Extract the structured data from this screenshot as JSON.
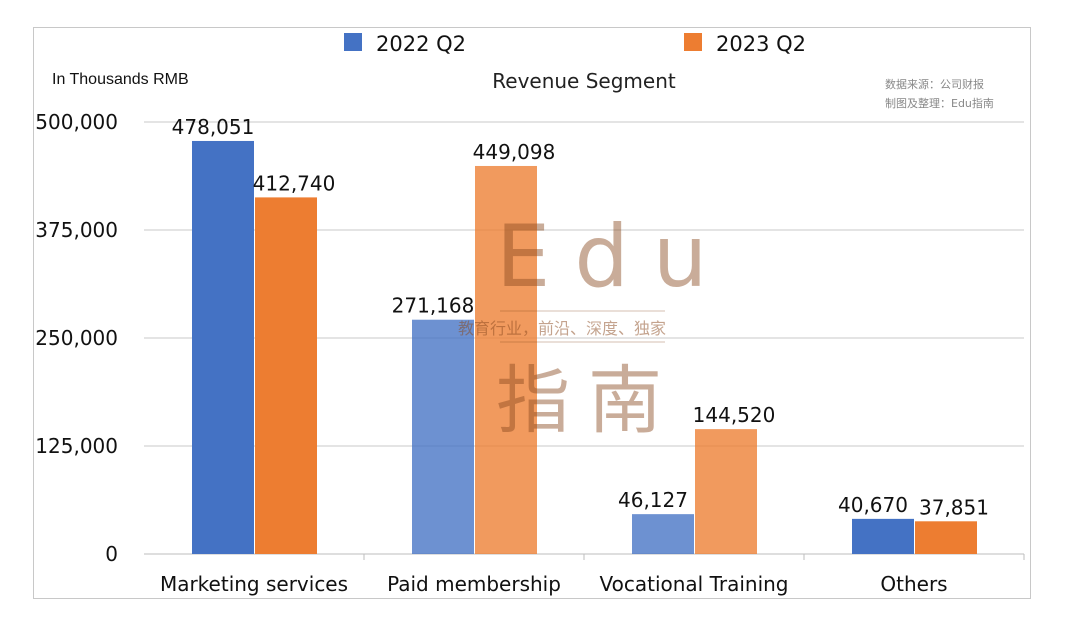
{
  "chart_data": {
    "type": "bar",
    "title": "Revenue Segment",
    "units_label": "In Thousands RMB",
    "source_lines": [
      "数据来源：公司财报",
      "制图及整理：Edu指南"
    ],
    "categories": [
      "Marketing services",
      "Paid membership",
      "Vocational Training",
      "Others"
    ],
    "series": [
      {
        "name": "2022 Q2",
        "color": "#4472C4",
        "values": [
          478051,
          271168,
          46127,
          40670
        ]
      },
      {
        "name": "2023 Q2",
        "color": "#ED7D31",
        "values": [
          412740,
          449098,
          144520,
          37851
        ]
      }
    ],
    "value_labels": [
      [
        "478,051",
        "271,168",
        "46,127",
        "40,670"
      ],
      [
        "412,740",
        "449,098",
        "144,520",
        "37,851"
      ]
    ],
    "ylim": [
      0,
      500000
    ],
    "yticks": [
      0,
      125000,
      250000,
      375000,
      500000
    ],
    "ytick_labels": [
      "0",
      "125,000",
      "250,000",
      "375,000",
      "500,000"
    ],
    "grid": true,
    "legend_position": "top",
    "watermark": {
      "main": "Edu",
      "sub": "教育行业，前沿、深度、独家",
      "cn": "指南"
    }
  }
}
